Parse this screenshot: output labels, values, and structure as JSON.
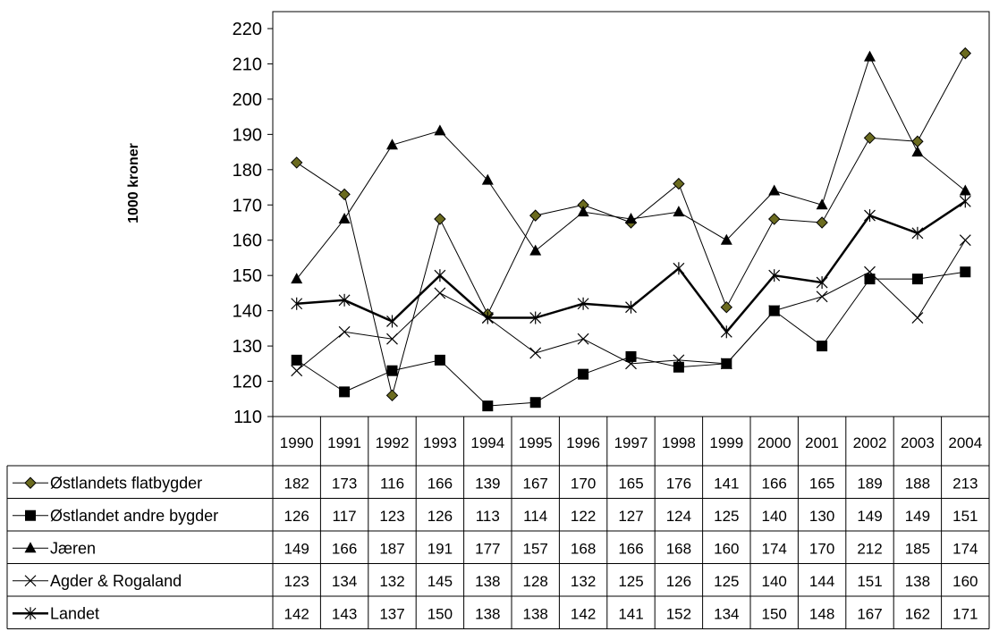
{
  "chart_data": {
    "type": "line",
    "title": "",
    "ylabel": "1000 kroner",
    "xlabel": "",
    "ylim": [
      110,
      220
    ],
    "yticks": [
      110,
      120,
      130,
      140,
      150,
      160,
      170,
      180,
      190,
      200,
      210,
      220
    ],
    "x": [
      "1990",
      "1991",
      "1992",
      "1993",
      "1994",
      "1995",
      "1996",
      "1997",
      "1998",
      "1999",
      "2000",
      "2001",
      "2002",
      "2003",
      "2004"
    ],
    "grid": false,
    "legend_placement": "data table below chart",
    "series": [
      {
        "name": "Østlandets flatbygder",
        "marker": "diamond",
        "values": [
          182,
          173,
          116,
          166,
          139,
          167,
          170,
          165,
          176,
          141,
          166,
          165,
          189,
          188,
          213
        ]
      },
      {
        "name": "Østlandet andre bygder",
        "marker": "square",
        "values": [
          126,
          117,
          123,
          126,
          113,
          114,
          122,
          127,
          124,
          125,
          140,
          130,
          149,
          149,
          151
        ]
      },
      {
        "name": "Jæren",
        "marker": "triangle",
        "values": [
          149,
          166,
          187,
          191,
          177,
          157,
          168,
          166,
          168,
          160,
          174,
          170,
          212,
          185,
          174
        ]
      },
      {
        "name": "Agder & Rogaland",
        "marker": "x",
        "values": [
          123,
          134,
          132,
          145,
          138,
          128,
          132,
          125,
          126,
          125,
          140,
          144,
          151,
          138,
          160
        ]
      },
      {
        "name": "Landet",
        "marker": "star",
        "values": [
          142,
          143,
          137,
          150,
          138,
          138,
          142,
          141,
          152,
          134,
          150,
          148,
          167,
          162,
          171
        ]
      }
    ],
    "colors": {
      "line": "#000000",
      "diamond_fill": "#6b6b1f",
      "background": "#ffffff"
    }
  }
}
